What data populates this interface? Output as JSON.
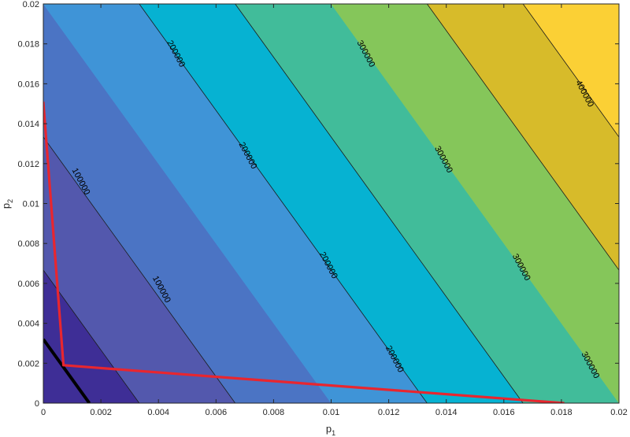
{
  "chart_data": {
    "type": "contour",
    "xlabel": "p",
    "xlabel_sub": "1",
    "ylabel": "p",
    "ylabel_sub": "2",
    "xlim": [
      0,
      0.02
    ],
    "ylim": [
      0,
      0.02
    ],
    "x_ticks": [
      "0",
      "0.002",
      "0.004",
      "0.006",
      "0.008",
      "0.01",
      "0.012",
      "0.014",
      "0.016",
      "0.018",
      "0.02"
    ],
    "y_ticks": [
      "0",
      "0.002",
      "0.004",
      "0.006",
      "0.008",
      "0.01",
      "0.012",
      "0.014",
      "0.016",
      "0.018",
      "0.02"
    ],
    "field": {
      "value_per_unit_p1": 15000000,
      "value_per_unit_p2": 7500000
    },
    "levels": [
      50000,
      100000,
      150000,
      200000,
      250000,
      300000,
      350000,
      400000
    ],
    "fill_colors": [
      "#3e2e96",
      "#5358ad",
      "#4b74c4",
      "#3f94d7",
      "#06b2d2",
      "#41bc9a",
      "#85c65a",
      "#d7bb2a",
      "#fbd035"
    ],
    "line_color": "#1a1a1a",
    "contour_labels": [
      {
        "text": "100000",
        "x": 0.0013,
        "y": 0.0111,
        "angle": 62
      },
      {
        "text": "100000",
        "x": 0.0041,
        "y": 0.0057,
        "angle": 62
      },
      {
        "text": "200000",
        "x": 0.0046,
        "y": 0.0175,
        "angle": 62
      },
      {
        "text": "200000",
        "x": 0.0071,
        "y": 0.0124,
        "angle": 62
      },
      {
        "text": "200000",
        "x": 0.0099,
        "y": 0.0069,
        "angle": 62
      },
      {
        "text": "200000",
        "x": 0.0122,
        "y": 0.0022,
        "angle": 62
      },
      {
        "text": "300000",
        "x": 0.0112,
        "y": 0.0175,
        "angle": 62
      },
      {
        "text": "300000",
        "x": 0.0139,
        "y": 0.0122,
        "angle": 62
      },
      {
        "text": "300000",
        "x": 0.0166,
        "y": 0.0068,
        "angle": 62
      },
      {
        "text": "300000",
        "x": 0.019,
        "y": 0.0019,
        "angle": 62
      },
      {
        "text": "400000",
        "x": 0.0188,
        "y": 0.0155,
        "angle": 62
      }
    ],
    "red_line": {
      "color": "#e8262f",
      "points": [
        [
          0.0,
          0.0151
        ],
        [
          0.0007,
          0.0019
        ],
        [
          0.0181,
          0.0
        ]
      ]
    },
    "black_line": {
      "color": "#000000",
      "points": [
        [
          0.0,
          0.0032
        ],
        [
          0.0016,
          0.0
        ]
      ]
    }
  }
}
